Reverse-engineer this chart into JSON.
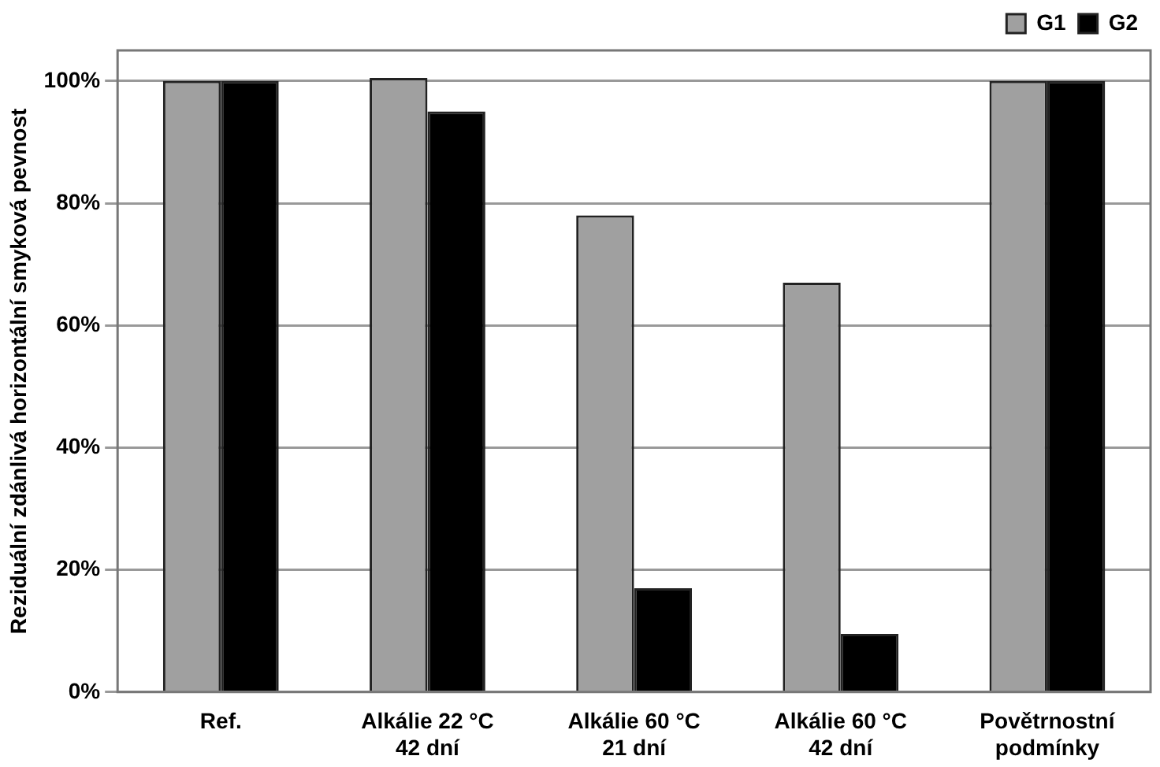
{
  "chart_data": {
    "type": "bar",
    "ylabel": "Reziduální zdánlivá horizontální smyková pevnost",
    "categories": [
      "Ref.",
      "Alkálie 22 °C\n42 dní",
      "Alkálie 60 °C\n21 dní",
      "Alkálie 60 °C\n42 dní",
      "Povětrnostní\npodmínky"
    ],
    "series": [
      {
        "name": "G1",
        "color": "#a0a0a0",
        "values": [
          100,
          100.5,
          78,
          67,
          100
        ]
      },
      {
        "name": "G2",
        "color": "#000000",
        "values": [
          100,
          95,
          17,
          9.5,
          100
        ]
      }
    ],
    "ylim": [
      0,
      105
    ],
    "yticks": [
      {
        "value": 0,
        "label": "0%"
      },
      {
        "value": 20,
        "label": "20%"
      },
      {
        "value": 40,
        "label": "40%"
      },
      {
        "value": 60,
        "label": "60%"
      },
      {
        "value": 80,
        "label": "80%"
      },
      {
        "value": 100,
        "label": "100%"
      }
    ],
    "grid": "y",
    "legend": "top right"
  }
}
